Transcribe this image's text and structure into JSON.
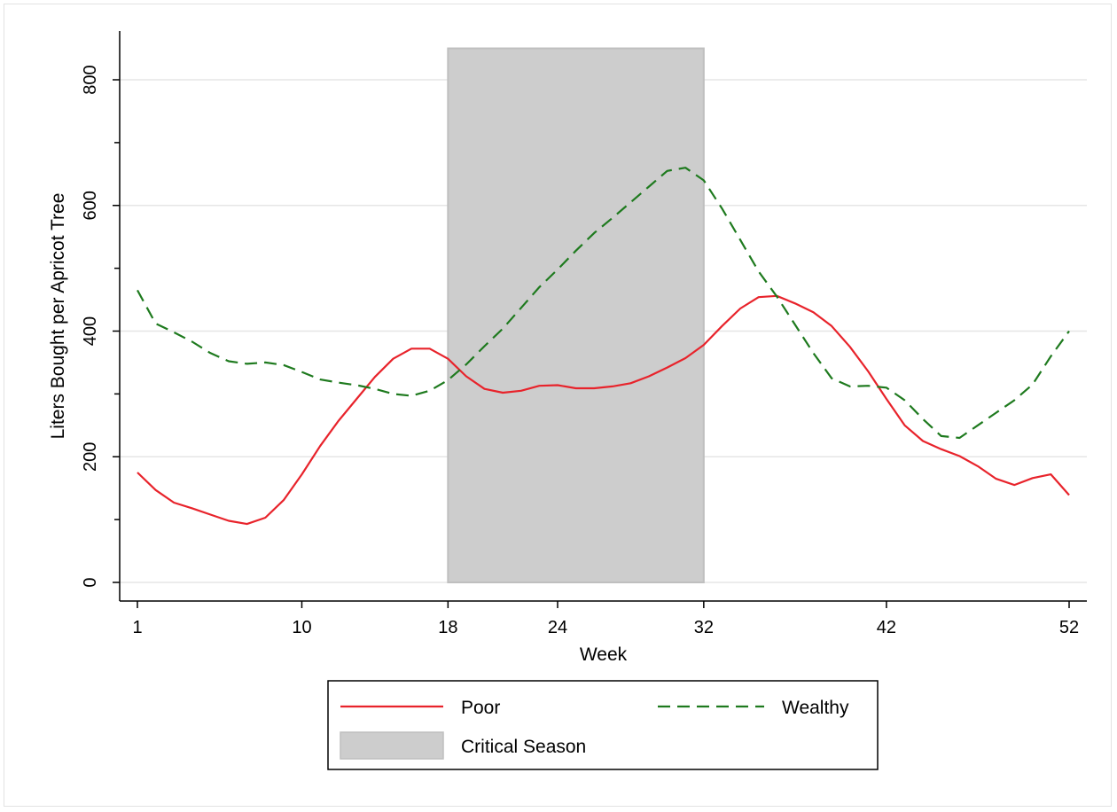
{
  "chart_data": {
    "type": "line",
    "title": "",
    "xlabel": "Week",
    "ylabel": "Liters Bought per Apricot Tree",
    "xlim": [
      1,
      52
    ],
    "ylim": [
      0,
      850
    ],
    "xticks": [
      1,
      10,
      18,
      24,
      32,
      42,
      52
    ],
    "yticks": [
      0,
      200,
      400,
      600,
      800
    ],
    "grid": true,
    "shaded_region": {
      "label": "Critical Season",
      "x_start": 18,
      "x_end": 32,
      "y_top": 850,
      "color": "#cdcdcd"
    },
    "series": [
      {
        "name": "Poor",
        "color": "#e8232b",
        "style": "solid",
        "x": [
          1,
          2,
          3,
          4,
          5,
          6,
          7,
          8,
          9,
          10,
          11,
          12,
          13,
          14,
          15,
          16,
          17,
          18,
          19,
          20,
          21,
          22,
          23,
          24,
          25,
          26,
          27,
          28,
          29,
          30,
          31,
          32,
          33,
          34,
          35,
          36,
          37,
          38,
          39,
          40,
          41,
          42,
          43,
          44,
          45,
          46,
          47,
          48,
          49,
          50,
          51,
          52
        ],
        "values": [
          175,
          147,
          127,
          118,
          108,
          98,
          93,
          103,
          131,
          172,
          217,
          257,
          292,
          327,
          356,
          372,
          372,
          356,
          328,
          308,
          302,
          305,
          313,
          314,
          309,
          309,
          312,
          317,
          328,
          342,
          357,
          378,
          408,
          436,
          454,
          456,
          444,
          430,
          408,
          375,
          336,
          292,
          250,
          225,
          212,
          201,
          185,
          165,
          155,
          166,
          172,
          139
        ]
      },
      {
        "name": "Wealthy",
        "color": "#1e7a1e",
        "style": "dashed",
        "x": [
          1,
          2,
          3,
          4,
          5,
          6,
          7,
          8,
          9,
          10,
          11,
          12,
          13,
          14,
          15,
          16,
          17,
          18,
          19,
          20,
          21,
          22,
          23,
          24,
          25,
          26,
          27,
          28,
          29,
          30,
          31,
          32,
          33,
          34,
          35,
          36,
          37,
          38,
          39,
          40,
          41,
          42,
          43,
          44,
          45,
          46,
          47,
          48,
          49,
          50,
          51,
          52
        ],
        "values": [
          465,
          412,
          398,
          383,
          365,
          352,
          348,
          350,
          346,
          335,
          323,
          318,
          314,
          308,
          300,
          297,
          305,
          322,
          347,
          376,
          404,
          437,
          470,
          498,
          528,
          556,
          580,
          605,
          630,
          655,
          660,
          640,
          595,
          545,
          495,
          455,
          410,
          365,
          325,
          312,
          313,
          310,
          290,
          260,
          233,
          230,
          250,
          270,
          290,
          315,
          360,
          400
        ]
      }
    ],
    "legend": {
      "position": "bottom",
      "entries": [
        "Poor",
        "Wealthy",
        "Critical Season"
      ]
    }
  }
}
